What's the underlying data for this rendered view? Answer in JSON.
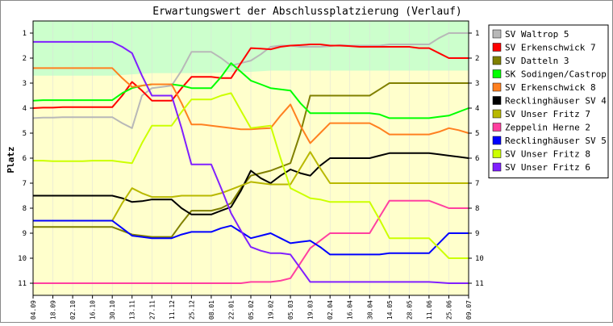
{
  "chart_data": {
    "type": "line",
    "title": "Erwartungswert der Abschlussplatzierung (Verlauf)",
    "xlabel": "",
    "ylabel": "Platz",
    "ylim": [
      1,
      11
    ],
    "y_inverted": true,
    "yticks": [
      "1",
      "2",
      "3",
      "4",
      "5",
      "6",
      "7",
      "8",
      "9",
      "10",
      "11"
    ],
    "x_tick_labels": [
      "04.09",
      "18.09",
      "02.10",
      "16.10",
      "30.10",
      "13.11",
      "27.11",
      "11.12",
      "25.12",
      "08.01",
      "22.01",
      "05.02",
      "19.02",
      "05.03",
      "19.03",
      "02.04",
      "16.04",
      "30.04",
      "14.05",
      "28.05",
      "11.06",
      "25.06",
      "09.07"
    ],
    "bands": [
      {
        "name": "upper",
        "color": "#ccffcc"
      },
      {
        "name": "lower",
        "color": "#ffffcc"
      }
    ],
    "upper_band_boundary": [
      2.7,
      2.7,
      2.7,
      2.7,
      2.7,
      2.65,
      2.6,
      2.6,
      2.6,
      2.6,
      2.55,
      2.55,
      2.5,
      2.5,
      2.5,
      2.5,
      2.5,
      2.5,
      2.5,
      2.5,
      2.5,
      2.5,
      2.5
    ],
    "x": [
      0,
      0.5,
      1,
      1.5,
      2,
      2.5,
      3,
      3.5,
      4,
      4.5,
      5,
      5.5,
      6,
      6.5,
      7,
      7.5,
      8,
      8.5,
      9,
      9.5,
      10,
      10.5,
      11,
      11.5,
      12,
      12.5,
      13,
      13.5,
      14,
      14.5,
      15,
      15.5,
      16,
      16.5,
      17,
      17.5,
      18,
      18.5,
      19,
      19.5,
      20,
      20.5,
      21,
      21.5,
      22
    ],
    "series": [
      {
        "name": "SV Waltrop 5",
        "color": "#b8b8b8",
        "values": [
          4.4,
          4.38,
          4.38,
          4.36,
          4.36,
          4.36,
          4.36,
          4.36,
          4.36,
          4.6,
          4.8,
          3.5,
          3.2,
          3.15,
          3.1,
          2.5,
          1.75,
          1.75,
          1.75,
          2.0,
          2.3,
          2.2,
          2.1,
          1.85,
          1.55,
          1.5,
          1.5,
          1.55,
          1.55,
          1.55,
          1.52,
          1.48,
          1.5,
          1.5,
          1.5,
          1.5,
          1.45,
          1.45,
          1.45,
          1.45,
          1.45,
          1.2,
          1.0,
          1.0,
          1.0
        ]
      },
      {
        "name": "SV Erkenschwick 7",
        "color": "#ff0000",
        "values": [
          4.0,
          3.98,
          3.98,
          3.96,
          3.96,
          3.96,
          3.96,
          3.96,
          3.96,
          3.5,
          2.95,
          3.3,
          3.7,
          3.7,
          3.7,
          3.2,
          2.75,
          2.75,
          2.75,
          2.8,
          2.8,
          2.2,
          1.6,
          1.62,
          1.65,
          1.55,
          1.5,
          1.48,
          1.45,
          1.45,
          1.5,
          1.5,
          1.52,
          1.55,
          1.55,
          1.55,
          1.55,
          1.55,
          1.55,
          1.6,
          1.6,
          1.8,
          2.0,
          2.0,
          2.0
        ]
      },
      {
        "name": "SV Datteln 3",
        "color": "#808000",
        "values": [
          8.75,
          8.75,
          8.75,
          8.75,
          8.75,
          8.75,
          8.75,
          8.75,
          8.75,
          8.9,
          9.05,
          9.1,
          9.15,
          9.15,
          9.15,
          8.6,
          8.1,
          8.1,
          8.1,
          8.0,
          7.8,
          7.2,
          6.7,
          6.6,
          6.5,
          6.35,
          6.2,
          5.0,
          3.5,
          3.5,
          3.5,
          3.5,
          3.5,
          3.5,
          3.5,
          3.25,
          3.0,
          3.0,
          3.0,
          3.0,
          3.0,
          3.0,
          3.0,
          3.0,
          3.0
        ]
      },
      {
        "name": "SK Sodingen/Castrop 5",
        "color": "#00ff00",
        "values": [
          3.7,
          3.68,
          3.68,
          3.68,
          3.68,
          3.68,
          3.68,
          3.68,
          3.68,
          3.4,
          3.2,
          3.1,
          3.05,
          3.05,
          3.05,
          3.1,
          3.2,
          3.2,
          3.2,
          2.75,
          2.2,
          2.55,
          2.9,
          3.05,
          3.2,
          3.25,
          3.3,
          3.8,
          4.2,
          4.2,
          4.2,
          4.2,
          4.2,
          4.2,
          4.2,
          4.25,
          4.4,
          4.4,
          4.4,
          4.4,
          4.4,
          4.35,
          4.3,
          4.15,
          4.0
        ]
      },
      {
        "name": "SV Erkenschwick 8",
        "color": "#ff8020",
        "values": [
          2.4,
          2.4,
          2.4,
          2.4,
          2.4,
          2.4,
          2.4,
          2.4,
          2.4,
          2.8,
          3.15,
          3.1,
          3.05,
          3.05,
          3.05,
          3.8,
          4.65,
          4.65,
          4.7,
          4.75,
          4.8,
          4.85,
          4.85,
          4.82,
          4.8,
          4.3,
          3.85,
          4.7,
          5.4,
          5.0,
          4.6,
          4.6,
          4.6,
          4.6,
          4.6,
          4.8,
          5.05,
          5.05,
          5.05,
          5.05,
          5.05,
          4.95,
          4.8,
          4.88,
          5.0
        ]
      },
      {
        "name": "Recklinghäuser SV 4",
        "color": "#000000",
        "values": [
          7.5,
          7.5,
          7.5,
          7.5,
          7.5,
          7.5,
          7.5,
          7.5,
          7.5,
          7.6,
          7.75,
          7.72,
          7.65,
          7.65,
          7.65,
          8.0,
          8.25,
          8.25,
          8.25,
          8.1,
          7.95,
          7.3,
          6.5,
          6.8,
          7.0,
          6.7,
          6.45,
          6.6,
          6.7,
          6.3,
          6.0,
          6.0,
          6.0,
          6.0,
          6.0,
          5.9,
          5.8,
          5.8,
          5.8,
          5.8,
          5.8,
          5.85,
          5.9,
          5.95,
          6.0
        ]
      },
      {
        "name": "SV Unser Fritz 7",
        "color": "#b8b800",
        "values": [
          8.5,
          8.5,
          8.5,
          8.5,
          8.5,
          8.5,
          8.5,
          8.5,
          8.5,
          7.8,
          7.2,
          7.4,
          7.55,
          7.55,
          7.55,
          7.5,
          7.5,
          7.5,
          7.5,
          7.4,
          7.25,
          7.1,
          6.95,
          7.0,
          7.05,
          7.05,
          7.05,
          6.4,
          5.75,
          6.4,
          7.0,
          7.0,
          7.0,
          7.0,
          7.0,
          7.0,
          7.0,
          7.0,
          7.0,
          7.0,
          7.0,
          7.0,
          7.0,
          7.0,
          7.0
        ]
      },
      {
        "name": "Zeppelin Herne 2",
        "color": "#ff40a0",
        "values": [
          11.0,
          11.0,
          11.0,
          11.0,
          11.0,
          11.0,
          11.0,
          11.0,
          11.0,
          11.0,
          11.0,
          11.0,
          11.0,
          11.0,
          11.0,
          11.0,
          11.0,
          11.0,
          11.0,
          11.0,
          11.0,
          11.0,
          10.95,
          10.95,
          10.95,
          10.9,
          10.8,
          10.2,
          9.6,
          9.3,
          9.0,
          9.0,
          9.0,
          9.0,
          9.0,
          8.35,
          7.7,
          7.7,
          7.7,
          7.7,
          7.7,
          7.85,
          8.0,
          8.0,
          8.0
        ]
      },
      {
        "name": "Recklinghäuser SV 5",
        "color": "#0000ff",
        "values": [
          8.5,
          8.5,
          8.5,
          8.5,
          8.5,
          8.5,
          8.5,
          8.5,
          8.5,
          8.8,
          9.1,
          9.15,
          9.2,
          9.2,
          9.2,
          9.05,
          8.95,
          8.95,
          8.95,
          8.8,
          8.7,
          8.95,
          9.2,
          9.1,
          9.0,
          9.2,
          9.4,
          9.35,
          9.3,
          9.55,
          9.85,
          9.85,
          9.85,
          9.85,
          9.85,
          9.85,
          9.8,
          9.8,
          9.8,
          9.8,
          9.8,
          9.4,
          9.0,
          9.0,
          9.0
        ]
      },
      {
        "name": "SV Unser Fritz 8",
        "color": "#ccff00",
        "values": [
          6.1,
          6.1,
          6.12,
          6.12,
          6.12,
          6.12,
          6.1,
          6.1,
          6.1,
          6.15,
          6.2,
          5.4,
          4.7,
          4.7,
          4.7,
          4.15,
          3.65,
          3.65,
          3.65,
          3.5,
          3.4,
          4.1,
          4.8,
          4.75,
          4.7,
          6.0,
          7.2,
          7.4,
          7.6,
          7.65,
          7.75,
          7.75,
          7.75,
          7.75,
          7.75,
          8.45,
          9.2,
          9.2,
          9.2,
          9.2,
          9.2,
          9.6,
          10.0,
          10.0,
          10.0
        ]
      },
      {
        "name": "SV Unser Fritz 6",
        "color": "#8020ff",
        "values": [
          1.35,
          1.35,
          1.35,
          1.35,
          1.35,
          1.35,
          1.35,
          1.35,
          1.35,
          1.55,
          1.8,
          2.7,
          3.5,
          3.5,
          3.5,
          4.8,
          6.25,
          6.25,
          6.25,
          7.2,
          8.2,
          8.9,
          9.55,
          9.7,
          9.8,
          9.8,
          9.85,
          10.4,
          10.95,
          10.95,
          10.95,
          10.95,
          10.95,
          10.95,
          10.95,
          10.95,
          10.95,
          10.95,
          10.95,
          10.95,
          10.95,
          10.97,
          11.0,
          11.0,
          11.0
        ]
      }
    ]
  }
}
